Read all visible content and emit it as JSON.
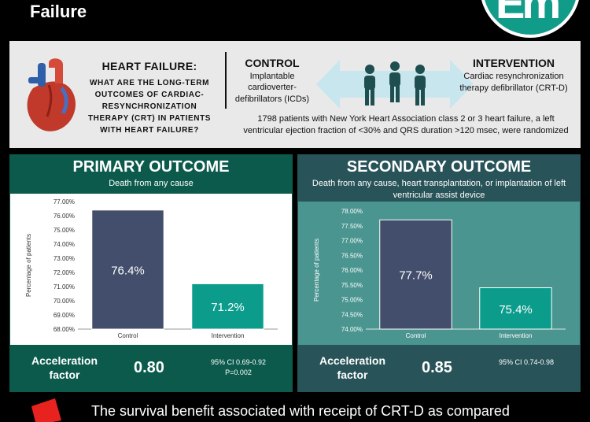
{
  "header": {
    "title": "Failure",
    "logo_text": "Em"
  },
  "info": {
    "question_title": "HEART FAILURE:",
    "question_text": "WHAT ARE THE LONG-TERM OUTCOMES OF CARDIAC-RESYNCHRONIZATION THERAPY (CRT) IN PATIENTS WITH HEART FAILURE?",
    "control_title": "CONTROL",
    "control_desc": "Implantable cardioverter-defibrillators (ICDs)",
    "intervention_title": "INTERVENTION",
    "intervention_desc": "Cardiac resynchronization therapy defibrillator (CRT-D)",
    "description": "1798 patients with New York Heart Association class 2 or 3 heart failure, a left ventricular ejection fraction of <30% and QRS duration >120 msec, were randomized"
  },
  "primary": {
    "title": "PRIMARY OUTCOME",
    "subtitle": "Death from any cause",
    "af_label": "Acceleration factor",
    "af_value": "0.80",
    "ci": "95% CI 0.69-0.92",
    "p": "P=0.002"
  },
  "secondary": {
    "title": "SECONDARY OUTCOME",
    "subtitle": "Death from any cause, heart transplantation, or implantation of left ventricular assist device",
    "af_label": "Acceleration factor",
    "af_value": "0.85",
    "ci": "95% CI 0.74-0.98"
  },
  "conclusion": {
    "text": "The survival benefit associated with receipt of CRT-D as compared"
  },
  "colors": {
    "control_bar": "#424e6b",
    "intervention_bar": "#0c9c8c",
    "primary_panel": "#0b5a4b",
    "secondary_panel": "#285359"
  },
  "chart_data": [
    {
      "type": "bar",
      "categories": [
        "Control",
        "Intervention"
      ],
      "values": [
        76.4,
        71.2
      ],
      "value_labels": [
        "76.4%",
        "71.2%"
      ],
      "ylabel": "Percentage of patients",
      "ylim": [
        68,
        77
      ],
      "yticks": [
        "68.00%",
        "69.00%",
        "70.00%",
        "71.00%",
        "72.00%",
        "73.00%",
        "74.00%",
        "75.00%",
        "76.00%",
        "77.00%"
      ],
      "grid": false
    },
    {
      "type": "bar",
      "categories": [
        "Control",
        "Intervention"
      ],
      "values": [
        77.7,
        75.4
      ],
      "value_labels": [
        "77.7%",
        "75.4%"
      ],
      "ylabel": "Percentage of patients",
      "ylim": [
        74,
        78
      ],
      "yticks": [
        "74.00%",
        "74.50%",
        "75.00%",
        "75.50%",
        "76.00%",
        "76.50%",
        "77.00%",
        "77.50%",
        "78.00%"
      ],
      "grid": false
    }
  ]
}
